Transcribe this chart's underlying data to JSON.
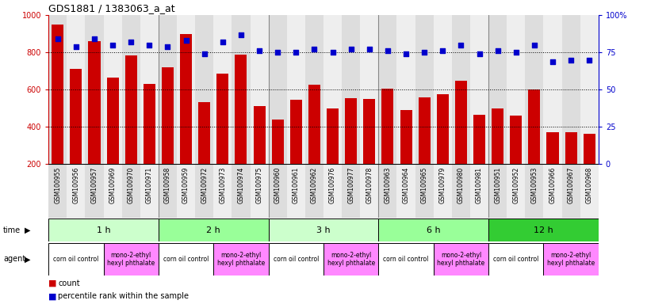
{
  "title": "GDS1881 / 1383063_a_at",
  "samples": [
    "GSM100955",
    "GSM100956",
    "GSM100957",
    "GSM100969",
    "GSM100970",
    "GSM100971",
    "GSM100958",
    "GSM100959",
    "GSM100972",
    "GSM100973",
    "GSM100974",
    "GSM100975",
    "GSM100960",
    "GSM100961",
    "GSM100962",
    "GSM100976",
    "GSM100977",
    "GSM100978",
    "GSM100963",
    "GSM100964",
    "GSM100965",
    "GSM100979",
    "GSM100980",
    "GSM100981",
    "GSM100951",
    "GSM100952",
    "GSM100953",
    "GSM100966",
    "GSM100967",
    "GSM100968"
  ],
  "counts": [
    950,
    710,
    860,
    665,
    785,
    630,
    720,
    900,
    535,
    685,
    790,
    510,
    440,
    545,
    625,
    500,
    555,
    550,
    605,
    490,
    560,
    575,
    650,
    465,
    500,
    460,
    600,
    370,
    370,
    365
  ],
  "percentiles": [
    84,
    79,
    84,
    80,
    82,
    80,
    79,
    83,
    74,
    82,
    87,
    76,
    75,
    75,
    77,
    75,
    77,
    77,
    76,
    74,
    75,
    76,
    80,
    74,
    76,
    75,
    80,
    69,
    70,
    70
  ],
  "bar_color": "#cc0000",
  "dot_color": "#0000cc",
  "ylim_left": [
    200,
    1000
  ],
  "ylim_right": [
    0,
    100
  ],
  "yticks_left": [
    200,
    400,
    600,
    800,
    1000
  ],
  "yticks_right": [
    0,
    25,
    50,
    75,
    100
  ],
  "grid_values": [
    400,
    600,
    800
  ],
  "time_groups": [
    {
      "label": "1 h",
      "start": 0,
      "end": 6,
      "color": "#ccffcc"
    },
    {
      "label": "2 h",
      "start": 6,
      "end": 12,
      "color": "#99ff99"
    },
    {
      "label": "3 h",
      "start": 12,
      "end": 18,
      "color": "#ccffcc"
    },
    {
      "label": "6 h",
      "start": 18,
      "end": 24,
      "color": "#99ff99"
    },
    {
      "label": "12 h",
      "start": 24,
      "end": 30,
      "color": "#33cc33"
    }
  ],
  "agent_groups": [
    {
      "label": "corn oil control",
      "start": 0,
      "end": 3,
      "color": "#ffffff"
    },
    {
      "label": "mono-2-ethyl\nhexyl phthalate",
      "start": 3,
      "end": 6,
      "color": "#ff88ff"
    },
    {
      "label": "corn oil control",
      "start": 6,
      "end": 9,
      "color": "#ffffff"
    },
    {
      "label": "mono-2-ethyl\nhexyl phthalate",
      "start": 9,
      "end": 12,
      "color": "#ff88ff"
    },
    {
      "label": "corn oil control",
      "start": 12,
      "end": 15,
      "color": "#ffffff"
    },
    {
      "label": "mono-2-ethyl\nhexyl phthalate",
      "start": 15,
      "end": 18,
      "color": "#ff88ff"
    },
    {
      "label": "corn oil control",
      "start": 18,
      "end": 21,
      "color": "#ffffff"
    },
    {
      "label": "mono-2-ethyl\nhexyl phthalate",
      "start": 21,
      "end": 24,
      "color": "#ff88ff"
    },
    {
      "label": "corn oil control",
      "start": 24,
      "end": 27,
      "color": "#ffffff"
    },
    {
      "label": "mono-2-ethyl\nhexyl phthalate",
      "start": 27,
      "end": 30,
      "color": "#ff88ff"
    }
  ],
  "bg_color": "#ffffff",
  "left_axis_color": "#cc0000",
  "right_axis_color": "#0000cc",
  "stripe_even": "#dddddd",
  "stripe_odd": "#eeeeee"
}
